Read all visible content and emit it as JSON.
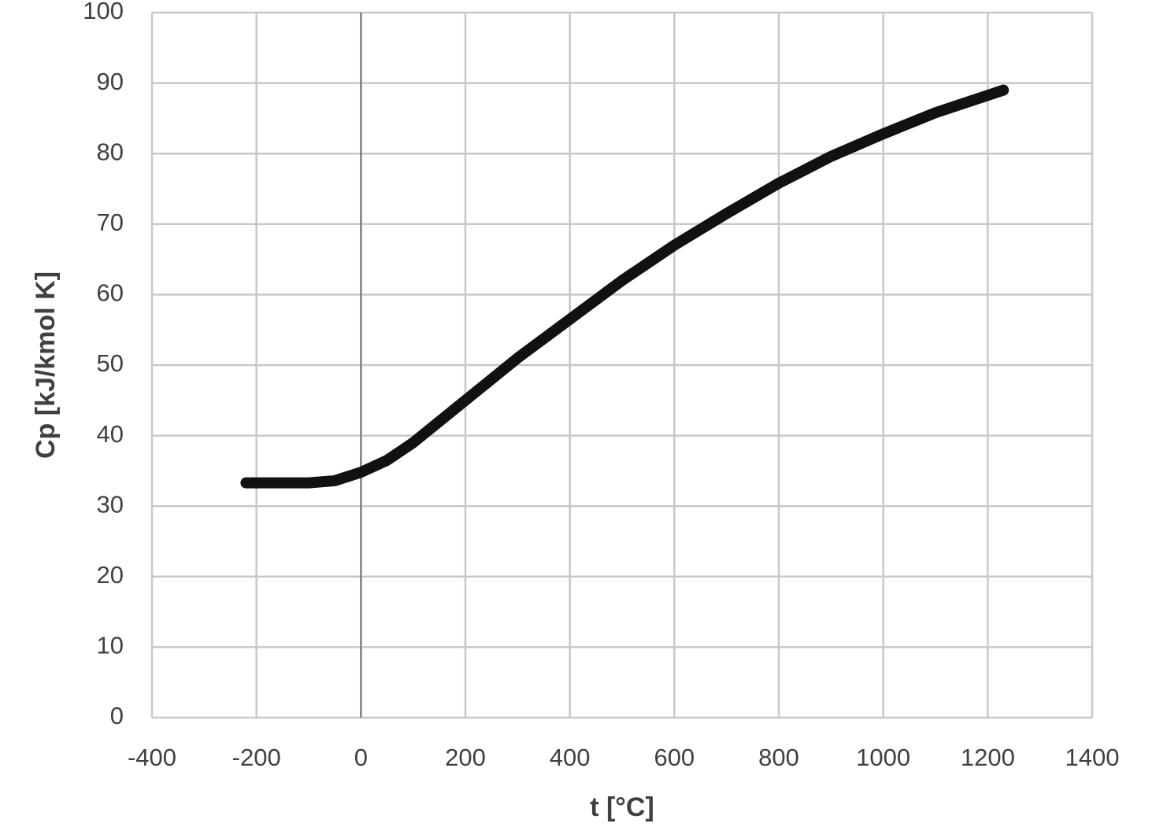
{
  "chart_data": {
    "type": "line",
    "xlabel": "t [°C]",
    "ylabel": "Cp [kJ/kmol K]",
    "x": [
      -220,
      -150,
      -100,
      -50,
      0,
      50,
      100,
      200,
      300,
      400,
      500,
      600,
      700,
      800,
      900,
      1000,
      1100,
      1230
    ],
    "series": [
      {
        "name": "Cp",
        "color": "#111111",
        "values": [
          33.3,
          33.3,
          33.3,
          33.6,
          34.8,
          36.5,
          39,
          45,
          51,
          56.5,
          62,
          67,
          71.5,
          75.8,
          79.6,
          82.8,
          85.8,
          89
        ]
      }
    ],
    "xlim": [
      -400,
      1400
    ],
    "xticks": [
      -400,
      -200,
      0,
      200,
      400,
      600,
      800,
      1000,
      1200,
      1400
    ],
    "ylim": [
      0,
      100
    ],
    "yticks": [
      0,
      10,
      20,
      30,
      40,
      50,
      60,
      70,
      80,
      90,
      100
    ],
    "grid": true
  }
}
